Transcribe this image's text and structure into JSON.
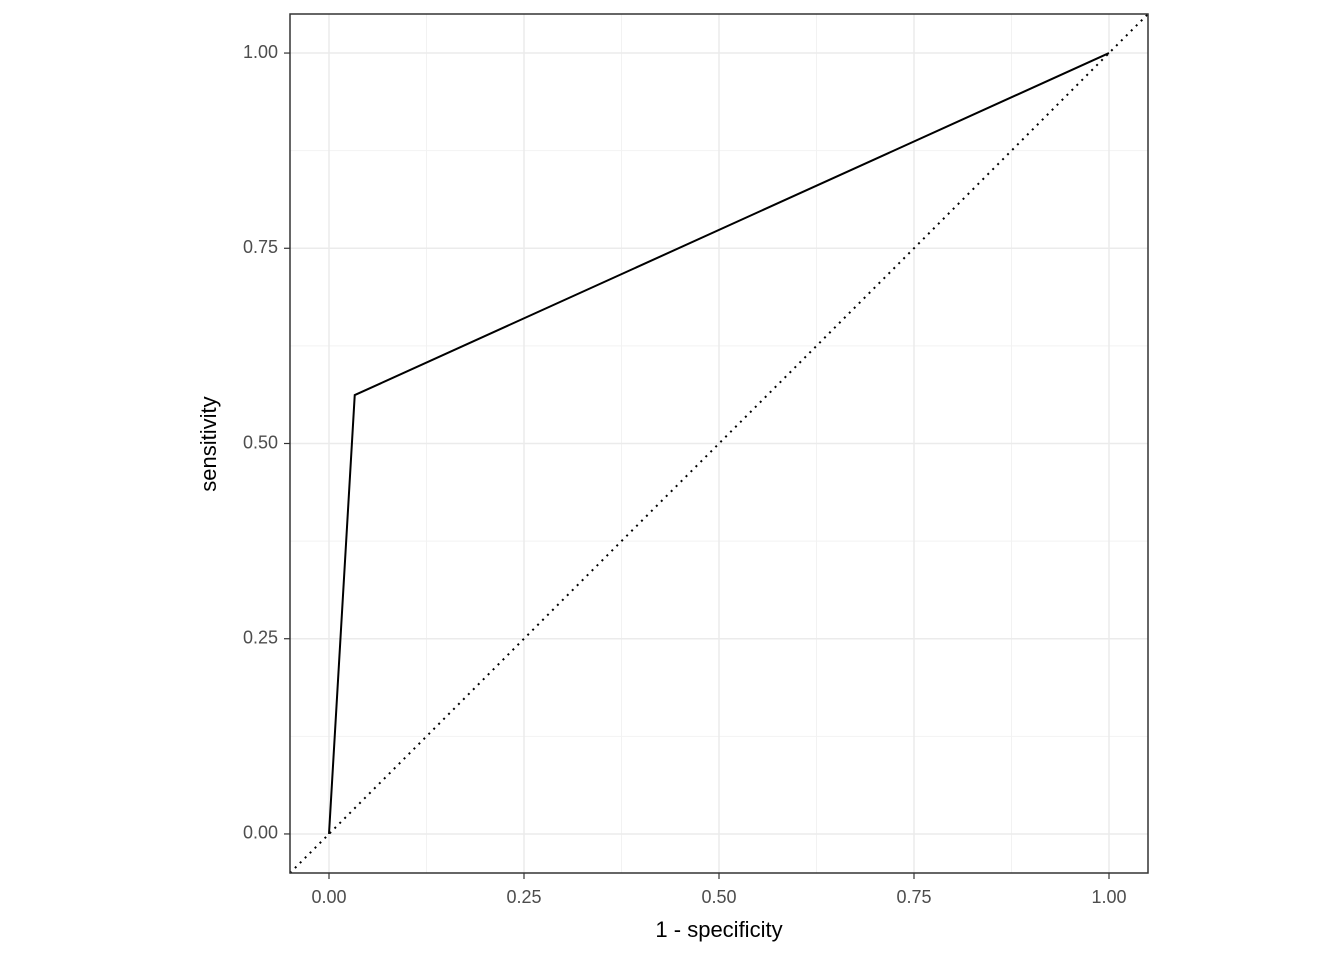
{
  "chart_data": {
    "type": "line",
    "x_label": "1 - specificity",
    "y_label": "sensitivity",
    "x": [
      0,
      0.033,
      1
    ],
    "values": [
      0,
      0.562,
      1
    ],
    "color": "#000000",
    "reference_line": {
      "slope": 1,
      "intercept": 0,
      "style": "dotted"
    },
    "xlim": [
      -0.05,
      1.05
    ],
    "ylim": [
      -0.05,
      1.05
    ],
    "xticks": [
      {
        "value": 0,
        "label": "0.00"
      },
      {
        "value": 0.25,
        "label": "0.25"
      },
      {
        "value": 0.5,
        "label": "0.50"
      },
      {
        "value": 0.75,
        "label": "0.75"
      },
      {
        "value": 1,
        "label": "1.00"
      }
    ],
    "yticks": [
      {
        "value": 0,
        "label": "0.00"
      },
      {
        "value": 0.25,
        "label": "0.25"
      },
      {
        "value": 0.5,
        "label": "0.50"
      },
      {
        "value": 0.75,
        "label": "0.75"
      },
      {
        "value": 1,
        "label": "1.00"
      }
    ],
    "minor_xticks": [
      0.125,
      0.375,
      0.625,
      0.875
    ],
    "minor_yticks": [
      0.125,
      0.375,
      0.625,
      0.875
    ],
    "grid": true
  }
}
